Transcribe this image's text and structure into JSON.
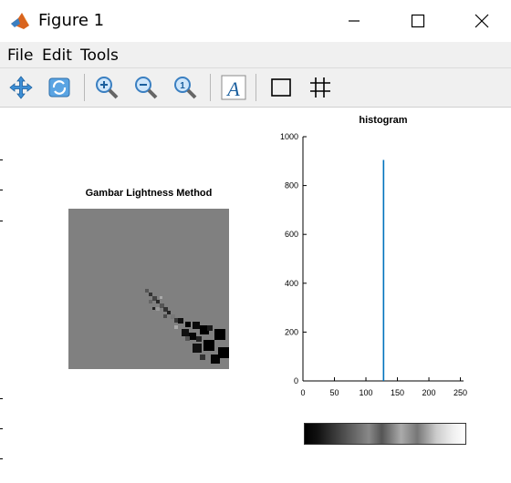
{
  "window": {
    "title": "Figure 1"
  },
  "menu": {
    "items": [
      "File",
      "Edit",
      "Tools"
    ]
  },
  "toolbar": {
    "tools": [
      "pan-icon",
      "rotate-3d-icon",
      "zoom-in-icon",
      "zoom-out-icon",
      "zoom-reset-icon",
      "insert-text-icon",
      "rectangle-icon",
      "grid-icon"
    ]
  },
  "image_axes": {
    "title": "Gambar Lightness Method"
  },
  "histogram": {
    "title": "histogram"
  },
  "chart_data": {
    "type": "bar",
    "title": "histogram",
    "xlabel": "",
    "ylabel": "",
    "xlim": [
      0,
      255
    ],
    "ylim": [
      0,
      1000
    ],
    "xticks": [
      0,
      50,
      100,
      150,
      200,
      250
    ],
    "yticks": [
      0,
      200,
      400,
      600,
      800,
      1000
    ],
    "x": [
      128
    ],
    "values": [
      905
    ],
    "color": "#0072bd",
    "grid": false
  },
  "colorbar": {
    "range": [
      0,
      255
    ]
  }
}
